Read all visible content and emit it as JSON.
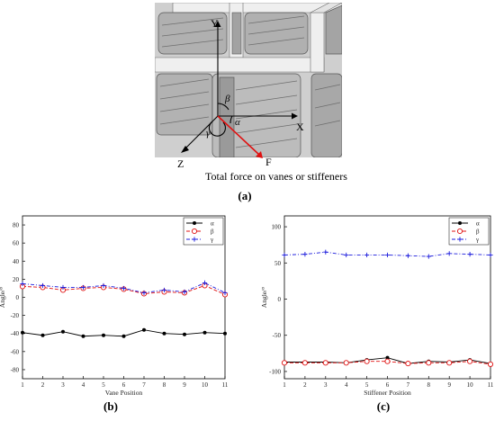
{
  "figure": {
    "panel_a": {
      "force_caption": "Total force on vanes or stiffeners",
      "axis_labels": {
        "x": "X",
        "y": "Y",
        "z": "Z",
        "f": "F"
      },
      "angle_labels": {
        "alpha": "α",
        "beta": "β",
        "gamma": "γ"
      },
      "label": "(a)",
      "colors": {
        "body": "#bdbdbd",
        "body_dark": "#8e8e8e",
        "frame": "#efefef",
        "force": "#e01010"
      }
    },
    "panel_b_label": "(b)",
    "panel_c_label": "(c)"
  },
  "chart_data": [
    {
      "type": "line",
      "xlabel": "Vane Position",
      "ylabel": "Angle/°",
      "x": [
        1,
        2,
        3,
        4,
        5,
        6,
        7,
        8,
        9,
        10,
        11
      ],
      "xlim": [
        1,
        11
      ],
      "ylim": [
        -90,
        90
      ],
      "yticks": [
        -80,
        -60,
        -40,
        -20,
        0,
        20,
        40,
        60,
        80
      ],
      "legend_position": "top-right",
      "grid": false,
      "series": [
        {
          "name": "α",
          "color": "#000000",
          "marker": "filled-circle",
          "dash": "solid",
          "values": [
            -39,
            -42,
            -38,
            -43,
            -42,
            -43,
            -36,
            -40,
            -41,
            -39,
            -40
          ]
        },
        {
          "name": "β",
          "color": "#e01010",
          "marker": "open-circle",
          "dash": "dashed",
          "values": [
            12,
            11,
            8,
            10,
            11,
            9,
            4,
            6,
            5,
            13,
            3
          ]
        },
        {
          "name": "γ",
          "color": "#1a1adc",
          "marker": "plus",
          "dash": "dashdot",
          "values": [
            15,
            13,
            11,
            11,
            13,
            10,
            5,
            8,
            6,
            16,
            5
          ]
        }
      ]
    },
    {
      "type": "line",
      "xlabel": "Stiffener Position",
      "ylabel": "Angle/°",
      "x": [
        1,
        2,
        3,
        4,
        5,
        6,
        7,
        8,
        9,
        10,
        11
      ],
      "xlim": [
        1,
        11
      ],
      "ylim": [
        -110,
        115
      ],
      "yticks": [
        -100,
        -50,
        0,
        50,
        100
      ],
      "legend_position": "top-right",
      "grid": false,
      "series": [
        {
          "name": "α",
          "color": "#000000",
          "marker": "filled-circle",
          "dash": "solid",
          "values": [
            -87,
            -87,
            -87,
            -88,
            -84,
            -81,
            -89,
            -86,
            -87,
            -84,
            -89
          ]
        },
        {
          "name": "β",
          "color": "#e01010",
          "marker": "open-circle",
          "dash": "dashed",
          "values": [
            -88,
            -88,
            -88,
            -88,
            -86,
            -86,
            -89,
            -88,
            -88,
            -86,
            -90
          ]
        },
        {
          "name": "γ",
          "color": "#1a1adc",
          "marker": "plus",
          "dash": "dashdot",
          "values": [
            61,
            62,
            65,
            61,
            61,
            61,
            60,
            59,
            63,
            62,
            61
          ]
        }
      ]
    }
  ]
}
